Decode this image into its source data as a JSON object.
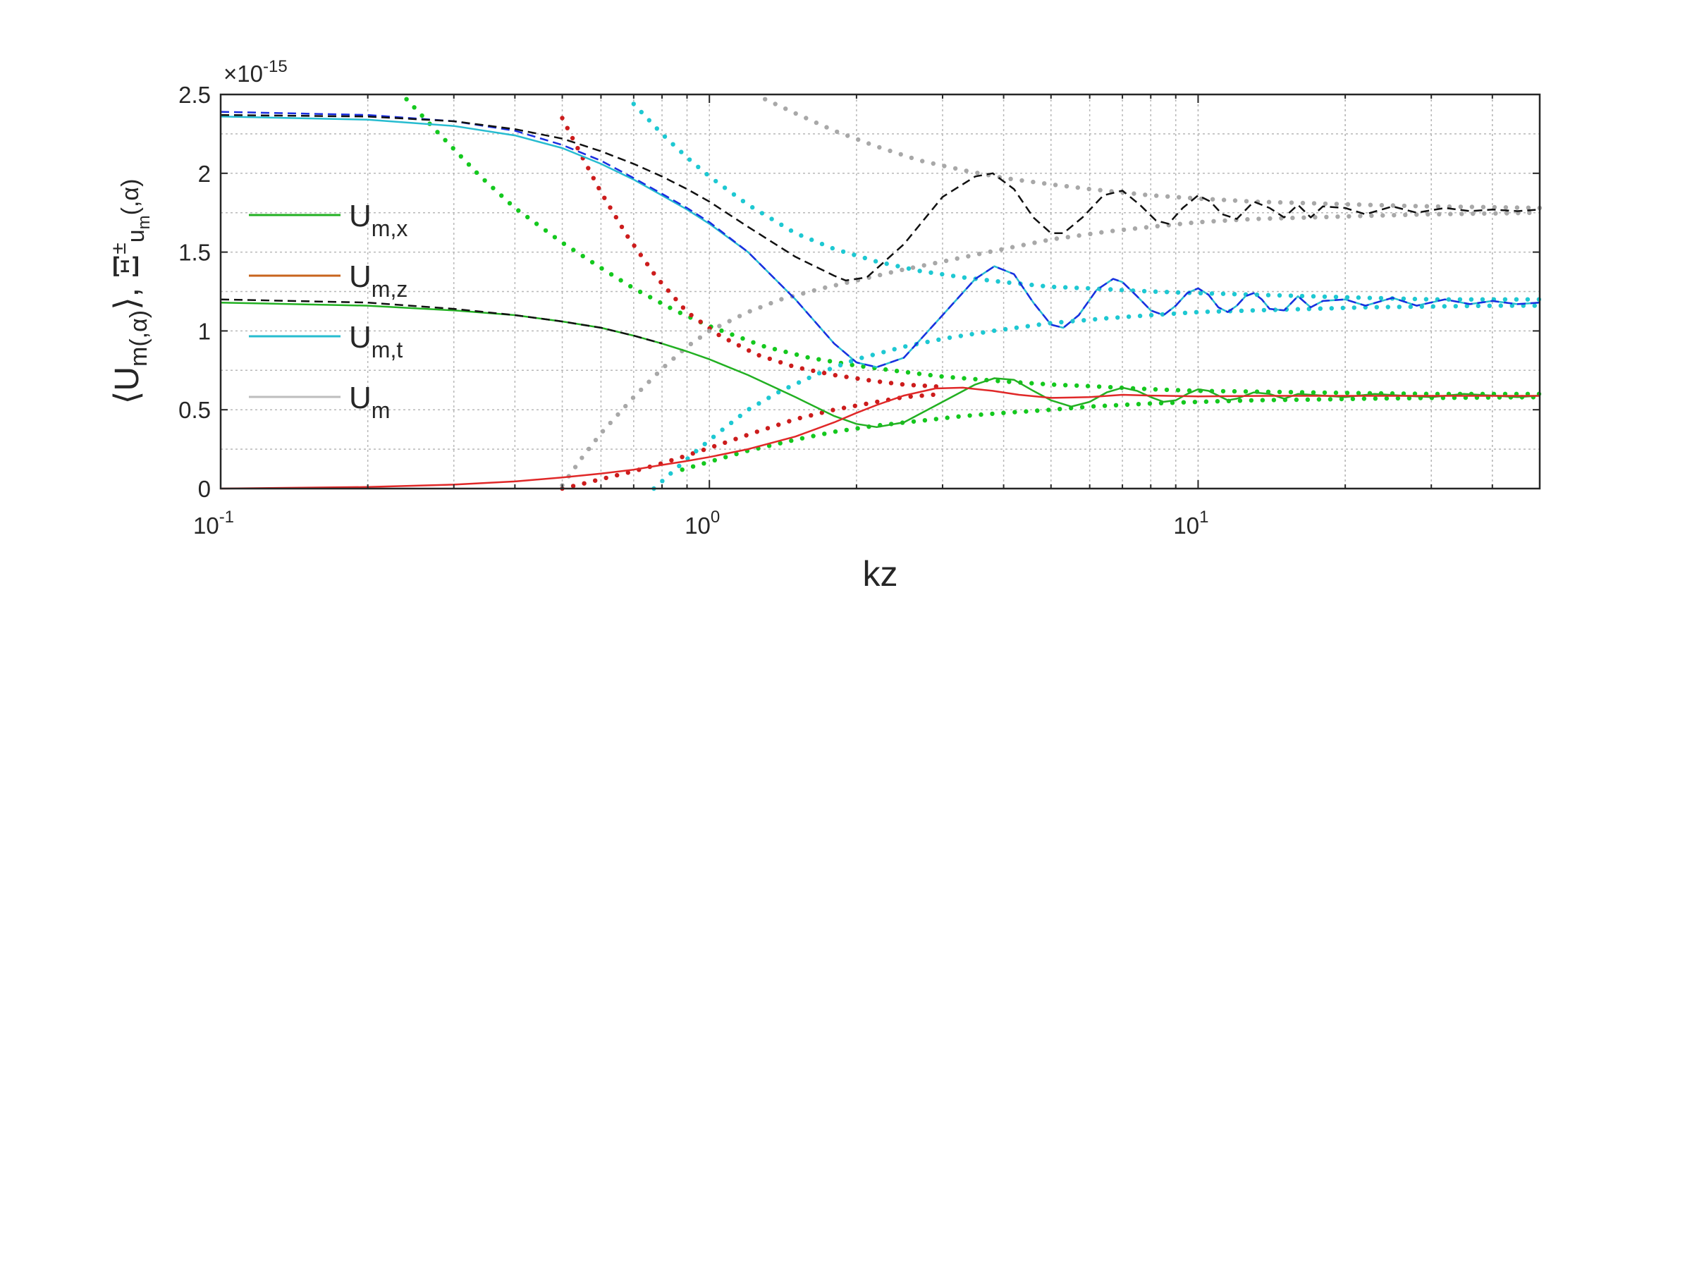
{
  "chart_data": {
    "type": "line",
    "x_scale": "log",
    "xlabel": "kz",
    "ylabel": "⟨U_m(,α)⟩, Ξ^±_u_m(,α)",
    "ylabel_parts": {
      "main": "⟨U",
      "sub": "m(,α)",
      "tail": "⟩, ",
      "xi": "Ξ",
      "xi_sup": "±",
      "xi_sub": "u",
      "xi_subsub": "m",
      "xi_tail": "(,α)"
    },
    "y_exponent": "×10",
    "y_exponent_power": "-15",
    "xlim": [
      0.1,
      50
    ],
    "ylim": [
      0,
      2.5
    ],
    "grid": true,
    "minor_grid": true,
    "x_ticks": [
      {
        "value": 0.1,
        "base": "10",
        "exp": "-1"
      },
      {
        "value": 1,
        "base": "10",
        "exp": "0"
      },
      {
        "value": 10,
        "base": "10",
        "exp": "1"
      }
    ],
    "y_ticks": [
      {
        "value": 0,
        "label": "0"
      },
      {
        "value": 0.5,
        "label": "0.5"
      },
      {
        "value": 1,
        "label": "1"
      },
      {
        "value": 1.5,
        "label": "1.5"
      },
      {
        "value": 2,
        "label": "2"
      },
      {
        "value": 2.5,
        "label": "2.5"
      }
    ],
    "legend": {
      "position": "left",
      "entries": [
        {
          "base": "U",
          "sub": "m,x",
          "color": "#22b022"
        },
        {
          "base": "U",
          "sub": "m,z",
          "color": "#c8641e"
        },
        {
          "base": "U",
          "sub": "m,t",
          "color": "#27bcd0"
        },
        {
          "base": "U",
          "sub": "m",
          "color": "#bdbdbd"
        }
      ]
    },
    "series": [
      {
        "key": "Um_x",
        "style": "solid",
        "color": "#22b022",
        "width": 2.5,
        "x": [
          0.1,
          0.2,
          0.3,
          0.4,
          0.5,
          0.6,
          0.7,
          0.8,
          0.9,
          1.0,
          1.2,
          1.5,
          1.8,
          2.0,
          2.2,
          2.5,
          3.0,
          3.5,
          3.83,
          4.2,
          4.6,
          5.0,
          5.5,
          6.0,
          6.5,
          7.0,
          7.5,
          8.0,
          8.5,
          9.0,
          9.5,
          10.0,
          10.5,
          11.0,
          11.5,
          12.0,
          13.0,
          14.0,
          15.0,
          16.0,
          18.0,
          20.0,
          23.0,
          26.0,
          30.0,
          35.0,
          40.0,
          45.0,
          50.0
        ],
        "y": [
          1.18,
          1.16,
          1.13,
          1.1,
          1.06,
          1.02,
          0.97,
          0.92,
          0.87,
          0.82,
          0.72,
          0.58,
          0.46,
          0.41,
          0.39,
          0.42,
          0.55,
          0.66,
          0.7,
          0.69,
          0.62,
          0.56,
          0.52,
          0.55,
          0.61,
          0.64,
          0.62,
          0.58,
          0.55,
          0.56,
          0.6,
          0.63,
          0.62,
          0.59,
          0.56,
          0.57,
          0.61,
          0.6,
          0.57,
          0.6,
          0.59,
          0.58,
          0.6,
          0.59,
          0.58,
          0.6,
          0.59,
          0.58,
          0.59
        ]
      },
      {
        "key": "Um_z",
        "style": "solid",
        "color": "#e02828",
        "width": 2.5,
        "x": [
          0.1,
          0.2,
          0.3,
          0.4,
          0.5,
          0.6,
          0.7,
          0.8,
          0.9,
          1.0,
          1.2,
          1.5,
          1.8,
          2.0,
          2.2,
          2.5,
          2.9,
          3.3,
          3.8,
          4.3,
          5.0,
          6.0,
          7.0,
          8.0,
          10.0,
          14.0,
          20.0,
          30.0,
          50.0
        ],
        "y": [
          0.0,
          0.01,
          0.025,
          0.045,
          0.07,
          0.095,
          0.12,
          0.15,
          0.175,
          0.2,
          0.25,
          0.33,
          0.42,
          0.48,
          0.53,
          0.59,
          0.635,
          0.64,
          0.62,
          0.595,
          0.575,
          0.58,
          0.595,
          0.59,
          0.585,
          0.588,
          0.588,
          0.588,
          0.588
        ]
      },
      {
        "key": "Um_t",
        "style": "solid",
        "color": "#27bcd0",
        "width": 2.5,
        "x": [
          0.1,
          0.2,
          0.3,
          0.4,
          0.5,
          0.6,
          0.7,
          0.8,
          0.9,
          1.0,
          1.2,
          1.5,
          1.8,
          2.0,
          2.2,
          2.5,
          3.0,
          3.5,
          3.83,
          4.2,
          4.6,
          5.0,
          5.3,
          5.7,
          6.2,
          6.7,
          7.0,
          7.5,
          8.0,
          8.5,
          9.0,
          9.5,
          10.0,
          10.5,
          11.0,
          11.5,
          12.0,
          12.5,
          13.0,
          13.5,
          14.0,
          15.0,
          16.0,
          17.0,
          18.0,
          20.0,
          22.0,
          25.0,
          28.0,
          32.0,
          36.0,
          40.0,
          45.0,
          50.0
        ],
        "y": [
          2.36,
          2.34,
          2.3,
          2.24,
          2.16,
          2.06,
          1.96,
          1.86,
          1.77,
          1.68,
          1.5,
          1.2,
          0.92,
          0.8,
          0.77,
          0.83,
          1.1,
          1.33,
          1.41,
          1.36,
          1.18,
          1.04,
          1.02,
          1.1,
          1.26,
          1.33,
          1.31,
          1.22,
          1.13,
          1.1,
          1.16,
          1.24,
          1.27,
          1.23,
          1.15,
          1.12,
          1.16,
          1.22,
          1.24,
          1.2,
          1.14,
          1.13,
          1.22,
          1.15,
          1.19,
          1.2,
          1.16,
          1.21,
          1.16,
          1.2,
          1.17,
          1.19,
          1.17,
          1.18
        ]
      },
      {
        "key": "Um_t_dashed",
        "style": "dashed",
        "color": "#1a2ee0",
        "width": 2.5,
        "x": [
          0.1,
          0.2,
          0.3,
          0.4,
          0.5,
          0.6,
          0.7,
          0.8,
          0.9,
          1.0,
          1.2,
          1.5,
          1.8,
          2.0,
          2.2,
          2.5,
          3.0,
          3.5,
          3.83,
          4.2,
          4.6,
          5.0,
          5.3,
          5.7,
          6.2,
          6.7,
          7.0,
          7.5,
          8.0,
          8.5,
          9.0,
          9.5,
          10.0,
          10.5,
          11.0,
          11.5,
          12.0,
          12.5,
          13.0,
          13.5,
          14.0,
          15.0,
          16.0,
          17.0,
          18.0,
          20.0,
          22.0,
          25.0,
          28.0,
          32.0,
          36.0,
          40.0,
          45.0,
          50.0
        ],
        "y": [
          2.39,
          2.37,
          2.33,
          2.27,
          2.18,
          2.08,
          1.97,
          1.87,
          1.78,
          1.69,
          1.5,
          1.2,
          0.92,
          0.8,
          0.77,
          0.83,
          1.1,
          1.33,
          1.41,
          1.36,
          1.18,
          1.04,
          1.02,
          1.1,
          1.26,
          1.33,
          1.31,
          1.22,
          1.13,
          1.1,
          1.16,
          1.24,
          1.27,
          1.23,
          1.15,
          1.12,
          1.16,
          1.22,
          1.24,
          1.2,
          1.14,
          1.13,
          1.22,
          1.15,
          1.19,
          1.2,
          1.16,
          1.21,
          1.16,
          1.2,
          1.17,
          1.19,
          1.17,
          1.18
        ]
      },
      {
        "key": "Um_x_dashed",
        "style": "dashed",
        "color": "#111111",
        "width": 2.5,
        "x": [
          0.1,
          0.2,
          0.3,
          0.4,
          0.5,
          0.6,
          0.7,
          0.8
        ],
        "y": [
          1.2,
          1.18,
          1.14,
          1.1,
          1.06,
          1.02,
          0.97,
          0.92
        ]
      },
      {
        "key": "Um",
        "style": "dashed",
        "color": "#111111",
        "width": 2.5,
        "x": [
          0.1,
          0.2,
          0.3,
          0.4,
          0.5,
          0.6,
          0.7,
          0.8,
          0.9,
          1.0,
          1.2,
          1.5,
          1.8,
          1.9,
          2.1,
          2.5,
          3.0,
          3.5,
          3.8,
          4.2,
          4.6,
          5.0,
          5.3,
          5.8,
          6.4,
          7.0,
          7.6,
          8.2,
          8.7,
          9.3,
          10.0,
          10.6,
          11.2,
          12.0,
          13.0,
          14.0,
          15.0,
          16.0,
          17.0,
          18.0,
          20.0,
          22.0,
          25.0,
          28.0,
          32.0,
          36.0,
          40.0,
          45.0,
          50.0
        ],
        "y": [
          2.37,
          2.36,
          2.33,
          2.28,
          2.22,
          2.14,
          2.06,
          1.98,
          1.9,
          1.82,
          1.66,
          1.47,
          1.35,
          1.32,
          1.34,
          1.55,
          1.85,
          1.98,
          2.0,
          1.9,
          1.72,
          1.62,
          1.62,
          1.72,
          1.86,
          1.89,
          1.8,
          1.7,
          1.68,
          1.78,
          1.86,
          1.82,
          1.74,
          1.71,
          1.82,
          1.78,
          1.72,
          1.8,
          1.72,
          1.79,
          1.78,
          1.74,
          1.79,
          1.75,
          1.78,
          1.76,
          1.77,
          1.76,
          1.77
        ]
      }
    ],
    "envelopes": [
      {
        "key": "Xi_x_plus",
        "color": "#14c81e",
        "x": [
          0.24,
          0.28,
          0.34,
          0.4,
          0.5,
          0.6,
          0.7,
          0.85,
          1.0,
          1.3,
          1.6,
          2.0,
          2.5,
          3.0,
          4.0,
          5.0,
          6.0,
          8.0,
          10.0,
          13.0,
          17.0,
          22.0,
          30.0,
          40.0,
          50.0
        ],
        "y": [
          2.47,
          2.25,
          1.98,
          1.78,
          1.56,
          1.4,
          1.27,
          1.13,
          1.03,
          0.9,
          0.83,
          0.78,
          0.74,
          0.71,
          0.68,
          0.66,
          0.65,
          0.63,
          0.62,
          0.615,
          0.61,
          0.605,
          0.6,
          0.6,
          0.6
        ]
      },
      {
        "key": "Xi_x_minus",
        "color": "#14c81e",
        "x": [
          0.88,
          1.0,
          1.2,
          1.5,
          1.8,
          2.2,
          2.7,
          3.3,
          4.0,
          5.0,
          6.0,
          8.0,
          10.0,
          13.0,
          17.0,
          22.0,
          30.0,
          40.0,
          50.0
        ],
        "y": [
          0.12,
          0.17,
          0.24,
          0.31,
          0.36,
          0.4,
          0.43,
          0.46,
          0.48,
          0.5,
          0.52,
          0.54,
          0.55,
          0.56,
          0.565,
          0.57,
          0.575,
          0.578,
          0.58
        ]
      },
      {
        "key": "Xi_z_plus",
        "color": "#cc1c1c",
        "x": [
          0.5,
          0.55,
          0.6,
          0.68,
          0.78,
          0.9,
          1.05,
          1.25,
          1.5,
          1.8,
          2.2,
          2.5,
          3.0
        ],
        "y": [
          2.35,
          2.1,
          1.88,
          1.6,
          1.34,
          1.12,
          0.97,
          0.85,
          0.77,
          0.72,
          0.68,
          0.66,
          0.645
        ]
      },
      {
        "key": "Xi_z_minus",
        "color": "#cc1c1c",
        "x": [
          0.5,
          0.55,
          0.6,
          0.68,
          0.78,
          0.9,
          1.05,
          1.25,
          1.5,
          1.8,
          2.2,
          2.5,
          3.0
        ],
        "y": [
          0.0,
          0.03,
          0.06,
          0.1,
          0.15,
          0.21,
          0.28,
          0.36,
          0.44,
          0.5,
          0.55,
          0.58,
          0.6
        ]
      },
      {
        "key": "Xi_t_plus",
        "color": "#1ec8d2",
        "x": [
          0.7,
          0.8,
          0.9,
          1.0,
          1.2,
          1.5,
          1.8,
          2.2,
          2.7,
          3.3,
          4.0,
          5.0,
          6.0,
          8.0,
          10.0,
          13.0,
          17.0,
          22.0,
          30.0,
          40.0,
          50.0
        ],
        "y": [
          2.44,
          2.25,
          2.1,
          1.98,
          1.8,
          1.62,
          1.52,
          1.44,
          1.38,
          1.34,
          1.31,
          1.28,
          1.27,
          1.25,
          1.24,
          1.23,
          1.22,
          1.21,
          1.2,
          1.2,
          1.2
        ]
      },
      {
        "key": "Xi_t_minus",
        "color": "#1ec8d2",
        "x": [
          0.77,
          0.85,
          0.95,
          1.05,
          1.2,
          1.4,
          1.7,
          2.0,
          2.5,
          3.0,
          3.8,
          5.0,
          6.5,
          8.0,
          10.0,
          13.0,
          17.0,
          22.0,
          30.0,
          40.0,
          50.0
        ],
        "y": [
          0.0,
          0.12,
          0.25,
          0.36,
          0.5,
          0.62,
          0.74,
          0.82,
          0.9,
          0.95,
          1.0,
          1.05,
          1.08,
          1.1,
          1.12,
          1.13,
          1.14,
          1.15,
          1.155,
          1.16,
          1.16
        ]
      },
      {
        "key": "Xi_plus",
        "color": "#a8a8a8",
        "x": [
          1.3,
          1.5,
          1.8,
          2.2,
          2.7,
          3.3,
          4.0,
          5.0,
          6.0,
          8.0,
          10.0,
          13.0,
          17.0,
          22.0,
          30.0,
          40.0,
          50.0
        ],
        "y": [
          2.47,
          2.38,
          2.27,
          2.17,
          2.08,
          2.02,
          1.97,
          1.93,
          1.9,
          1.86,
          1.84,
          1.82,
          1.81,
          1.8,
          1.79,
          1.785,
          1.78
        ]
      },
      {
        "key": "Xi_minus",
        "color": "#a8a8a8",
        "x": [
          0.5,
          0.55,
          0.6,
          0.7,
          0.8,
          0.9,
          1.0,
          1.2,
          1.4,
          1.7,
          2.0,
          2.5,
          3.0,
          4.0,
          5.0,
          6.5,
          8.0,
          10.0,
          13.0,
          17.0,
          22.0,
          30.0,
          40.0,
          50.0
        ],
        "y": [
          0.02,
          0.2,
          0.35,
          0.58,
          0.76,
          0.9,
          1.0,
          1.12,
          1.2,
          1.27,
          1.32,
          1.39,
          1.44,
          1.52,
          1.58,
          1.63,
          1.66,
          1.69,
          1.71,
          1.72,
          1.73,
          1.74,
          1.745,
          1.75
        ]
      }
    ]
  }
}
